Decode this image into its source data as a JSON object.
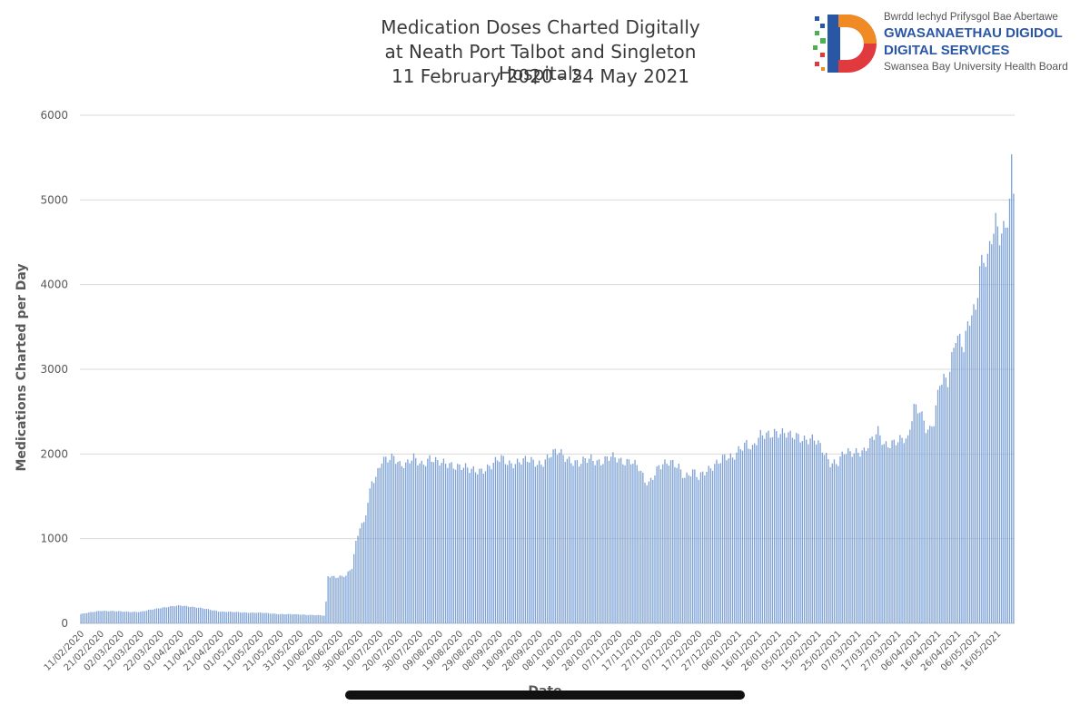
{
  "logo": {
    "welsh_line": "Bwrdd Iechyd Prifysgol Bae Abertawe",
    "line1": "GWASANAETHAU DIGIDOL",
    "line2": "DIGITAL SERVICES",
    "board": "Swansea Bay University Health Board",
    "colors": {
      "blue": "#2a57a5",
      "orange": "#f08a24",
      "red": "#e0393e",
      "green": "#4caf50"
    }
  },
  "chart_data": {
    "type": "bar",
    "title_lines": [
      "Medication Doses Charted Digitally",
      "at Neath Port Talbot and Singleton Hospitals",
      "11 February 2020 - 24 May 2021"
    ],
    "xlabel": "Date",
    "ylabel": "Medications Charted per Day",
    "ylim": [
      0,
      6000
    ],
    "y_ticks": [
      0,
      1000,
      2000,
      3000,
      4000,
      5000,
      6000
    ],
    "grid": true,
    "bar_color": "#7ea2d6",
    "x_tick_labels": [
      "11/02/2020",
      "21/02/2020",
      "02/03/2020",
      "12/03/2020",
      "22/03/2020",
      "01/04/2020",
      "11/04/2020",
      "21/04/2020",
      "01/05/2020",
      "11/05/2020",
      "21/05/2020",
      "31/05/2020",
      "10/06/2020",
      "20/06/2020",
      "30/06/2020",
      "10/07/2020",
      "20/07/2020",
      "30/07/2020",
      "09/08/2020",
      "19/08/2020",
      "29/08/2020",
      "08/09/2020",
      "18/09/2020",
      "28/09/2020",
      "08/10/2020",
      "18/10/2020",
      "28/10/2020",
      "07/11/2020",
      "17/11/2020",
      "27/11/2020",
      "07/12/2020",
      "17/12/2020",
      "27/12/2020",
      "06/01/2021",
      "16/01/2021",
      "26/01/2021",
      "05/02/2021",
      "15/02/2021",
      "25/02/2021",
      "07/03/2021",
      "17/03/2021",
      "27/03/2021",
      "06/04/2021",
      "16/04/2021",
      "26/04/2021",
      "06/05/2021",
      "16/05/2021"
    ],
    "days_per_tick": 10,
    "total_days": 469,
    "anchors": [
      [
        0,
        110
      ],
      [
        10,
        150
      ],
      [
        20,
        140
      ],
      [
        30,
        135
      ],
      [
        40,
        185
      ],
      [
        50,
        210
      ],
      [
        55,
        200
      ],
      [
        60,
        180
      ],
      [
        70,
        140
      ],
      [
        80,
        130
      ],
      [
        90,
        125
      ],
      [
        100,
        110
      ],
      [
        110,
        105
      ],
      [
        120,
        95
      ],
      [
        122,
        90
      ],
      [
        123,
        250
      ],
      [
        124,
        560
      ],
      [
        128,
        555
      ],
      [
        133,
        560
      ],
      [
        136,
        650
      ],
      [
        138,
        950
      ],
      [
        140,
        1150
      ],
      [
        142,
        1200
      ],
      [
        144,
        1450
      ],
      [
        146,
        1680
      ],
      [
        148,
        1700
      ],
      [
        151,
        1900
      ],
      [
        154,
        1950
      ],
      [
        157,
        2000
      ],
      [
        160,
        1880
      ],
      [
        163,
        1850
      ],
      [
        167,
        1950
      ],
      [
        171,
        1900
      ],
      [
        175,
        1950
      ],
      [
        179,
        1880
      ],
      [
        185,
        1900
      ],
      [
        190,
        1850
      ],
      [
        195,
        1800
      ],
      [
        200,
        1820
      ],
      [
        206,
        1850
      ],
      [
        211,
        1950
      ],
      [
        216,
        1900
      ],
      [
        221,
        1900
      ],
      [
        226,
        1920
      ],
      [
        231,
        1900
      ],
      [
        236,
        1980
      ],
      [
        240,
        2020
      ],
      [
        245,
        1950
      ],
      [
        250,
        1870
      ],
      [
        256,
        1950
      ],
      [
        261,
        1920
      ],
      [
        266,
        1950
      ],
      [
        271,
        1920
      ],
      [
        276,
        1940
      ],
      [
        280,
        1820
      ],
      [
        283,
        1660
      ],
      [
        285,
        1650
      ],
      [
        287,
        1750
      ],
      [
        290,
        1880
      ],
      [
        295,
        1880
      ],
      [
        300,
        1850
      ],
      [
        303,
        1750
      ],
      [
        307,
        1800
      ],
      [
        310,
        1700
      ],
      [
        314,
        1800
      ],
      [
        318,
        1900
      ],
      [
        322,
        1950
      ],
      [
        327,
        1930
      ],
      [
        331,
        2100
      ],
      [
        334,
        2150
      ],
      [
        337,
        2050
      ],
      [
        341,
        2200
      ],
      [
        345,
        2250
      ],
      [
        348,
        2280
      ],
      [
        352,
        2230
      ],
      [
        356,
        2200
      ],
      [
        360,
        2230
      ],
      [
        364,
        2180
      ],
      [
        368,
        2150
      ],
      [
        372,
        2050
      ],
      [
        376,
        1920
      ],
      [
        380,
        1900
      ],
      [
        383,
        2000
      ],
      [
        386,
        2000
      ],
      [
        390,
        2050
      ],
      [
        393,
        2050
      ],
      [
        397,
        2150
      ],
      [
        400,
        2250
      ],
      [
        403,
        2120
      ],
      [
        407,
        2150
      ],
      [
        411,
        2150
      ],
      [
        415,
        2150
      ],
      [
        417,
        2450
      ],
      [
        418,
        2580
      ],
      [
        421,
        2560
      ],
      [
        424,
        2300
      ],
      [
        426,
        2250
      ],
      [
        428,
        2350
      ],
      [
        431,
        2850
      ],
      [
        433,
        2920
      ],
      [
        435,
        2900
      ],
      [
        437,
        3150
      ],
      [
        439,
        3380
      ],
      [
        441,
        3300
      ],
      [
        443,
        3220
      ],
      [
        445,
        3500
      ],
      [
        447,
        3700
      ],
      [
        449,
        3750
      ],
      [
        451,
        4250
      ],
      [
        453,
        4300
      ],
      [
        455,
        4250
      ],
      [
        457,
        4500
      ],
      [
        459,
        4700
      ],
      [
        461,
        4600
      ],
      [
        463,
        4700
      ],
      [
        465,
        4850
      ],
      [
        466,
        5000
      ],
      [
        467,
        5450
      ],
      [
        468,
        5150
      ],
      [
        469,
        5450
      ]
    ]
  }
}
